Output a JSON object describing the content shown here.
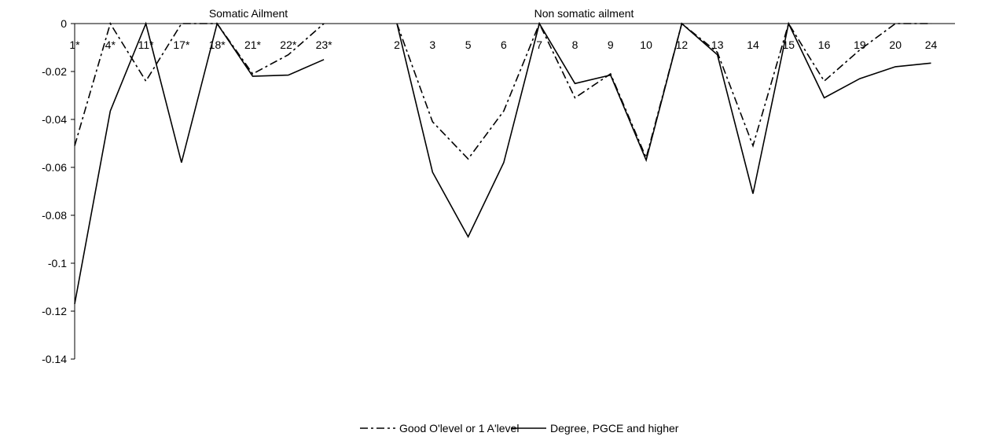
{
  "chart_data": {
    "type": "line",
    "ylim": [
      -0.14,
      0
    ],
    "yticks": [
      0,
      -0.02,
      -0.04,
      -0.06,
      -0.08,
      -0.1,
      -0.12,
      -0.14
    ],
    "ytick_labels": [
      "0",
      "-0.02",
      "-0.04",
      "-0.06",
      "-0.08",
      "-0.1",
      "-0.12",
      "-0.14"
    ],
    "grid": false,
    "legend_position": "bottom",
    "group_labels": [
      "Somatic Ailment",
      "Non somatic ailment"
    ],
    "groups": [
      {
        "categories": [
          "1*",
          "4*",
          "11*",
          "17*",
          "18*",
          "21*",
          "22*",
          "23*"
        ],
        "series": [
          {
            "name": "Good O'level or 1 A'level",
            "values": [
              -0.051,
              0.0,
              -0.024,
              0.0,
              0.0,
              -0.021,
              -0.013,
              0.0
            ]
          },
          {
            "name": "Degree, PGCE and higher",
            "values": [
              -0.117,
              -0.0365,
              0.0,
              -0.058,
              0.0,
              -0.022,
              -0.0215,
              -0.015
            ]
          }
        ]
      },
      {
        "categories": [
          "2",
          "3",
          "5",
          "6",
          "7",
          "8",
          "9",
          "10",
          "12",
          "13",
          "14",
          "15",
          "16",
          "19",
          "20",
          "24"
        ],
        "series": [
          {
            "name": "Good O'level or 1 A'level",
            "values": [
              0.0,
              -0.041,
              -0.0565,
              -0.0365,
              0.0,
              -0.031,
              -0.021,
              -0.056,
              0.0,
              -0.012,
              -0.051,
              0.0,
              -0.024,
              -0.011,
              0.0,
              0.0
            ]
          },
          {
            "name": "Degree, PGCE and higher",
            "values": [
              0.0,
              -0.062,
              -0.089,
              -0.058,
              0.0,
              -0.025,
              -0.0215,
              -0.057,
              0.0,
              -0.013,
              -0.071,
              0.0,
              -0.031,
              -0.023,
              -0.018,
              -0.0165
            ]
          }
        ]
      }
    ],
    "legend": [
      "Good O'level or 1 A'level",
      "Degree, PGCE and higher"
    ]
  }
}
